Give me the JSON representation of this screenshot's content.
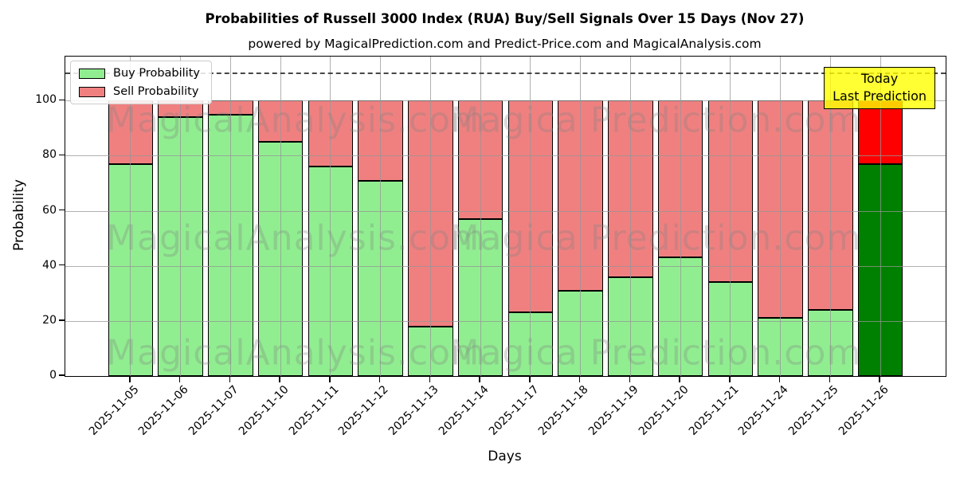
{
  "title": "Probabilities of Russell 3000 Index (RUA) Buy/Sell Signals Over 15 Days (Nov 27)",
  "subtitle": "powered by MagicalPrediction.com and Predict-Price.com and MagicalAnalysis.com",
  "axis": {
    "x_label": "Days",
    "y_label": "Probability"
  },
  "legend": {
    "items": [
      {
        "label": "Buy Probability",
        "color": "#90ee90"
      },
      {
        "label": "Sell Probability",
        "color": "#f08080"
      }
    ]
  },
  "annotation": {
    "line1": "Today",
    "line2": "Last Prediction",
    "bg_color": "rgba(255,255,0,0.8)"
  },
  "watermarks": {
    "left_text": "MagicalAnalysis.com",
    "right_text": "Magica Prediction.com"
  },
  "chart_data": {
    "type": "bar",
    "stacked": true,
    "title": "Probabilities of Russell 3000 Index (RUA) Buy/Sell Signals Over 15 Days (Nov 27)",
    "xlabel": "Days",
    "ylabel": "Probability",
    "legend_position": "upper left",
    "grid": true,
    "ylim": [
      0,
      116
    ],
    "yticks": [
      0,
      20,
      40,
      60,
      80,
      100
    ],
    "threshold_line": {
      "value": 110,
      "style": "dashed",
      "color": "#464646"
    },
    "categories": [
      "2025-11-05",
      "2025-11-06",
      "2025-11-07",
      "2025-11-10",
      "2025-11-11",
      "2025-11-12",
      "2025-11-13",
      "2025-11-14",
      "2025-11-17",
      "2025-11-18",
      "2025-11-19",
      "2025-11-20",
      "2025-11-21",
      "2025-11-24",
      "2025-11-25",
      "2025-11-26"
    ],
    "series": [
      {
        "name": "Buy Probability",
        "color": "#90ee90",
        "last_bar_color": "#008000",
        "values": [
          77,
          94,
          95,
          85,
          76,
          71,
          18,
          57,
          23,
          31,
          36,
          43,
          34,
          21,
          24,
          77
        ]
      },
      {
        "name": "Sell Probability",
        "color": "#f08080",
        "last_bar_color": "#ff0000",
        "values": [
          23,
          6,
          5,
          15,
          24,
          29,
          82,
          43,
          77,
          69,
          64,
          57,
          66,
          79,
          76,
          23
        ]
      }
    ]
  }
}
